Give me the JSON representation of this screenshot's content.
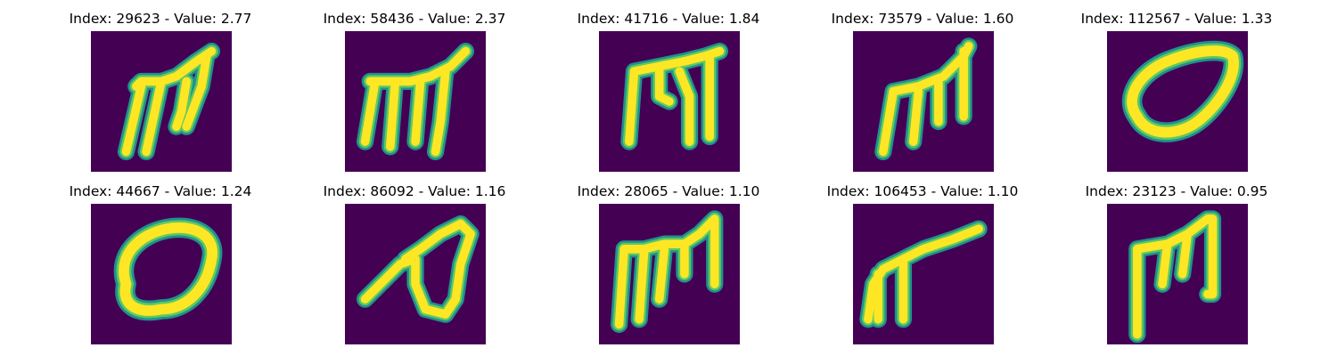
{
  "colors": {
    "background": "#440154",
    "stroke_edge": "#21918c",
    "stroke_mid": "#5ec962",
    "stroke_core": "#fde725"
  },
  "panels": [
    {
      "title": "Index: 29623 - Value: 2.77",
      "glyph": "m-shape"
    },
    {
      "title": "Index: 58436 - Value: 2.37",
      "glyph": "m-shape"
    },
    {
      "title": "Index: 41716 - Value: 1.84",
      "glyph": "m-shape"
    },
    {
      "title": "Index: 73579 - Value: 1.60",
      "glyph": "m-shape"
    },
    {
      "title": "Index: 112567 - Value: 1.33",
      "glyph": "o-shape"
    },
    {
      "title": "Index: 44667 - Value: 1.24",
      "glyph": "o-shape"
    },
    {
      "title": "Index: 86092 - Value: 1.16",
      "glyph": "loop-shape"
    },
    {
      "title": "Index: 28065 - Value: 1.10",
      "glyph": "m-shape"
    },
    {
      "title": "Index: 106453 - Value: 1.10",
      "glyph": "pi-shape"
    },
    {
      "title": "Index: 23123 - Value: 0.95",
      "glyph": "m-shape"
    }
  ]
}
